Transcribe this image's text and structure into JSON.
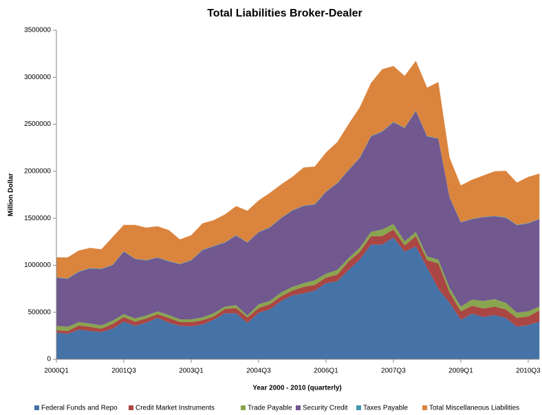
{
  "chart_data": {
    "type": "stacked_area",
    "title": "Total Liabilities Broker-Dealer",
    "x_label": "Year 2000 - 2010 (quarterly)",
    "y_label": "Million Dollar",
    "categories": [
      "2000Q1",
      null,
      null,
      null,
      null,
      null,
      "2001Q3",
      null,
      null,
      null,
      null,
      null,
      "2003Q1",
      null,
      null,
      null,
      null,
      null,
      "2004Q3",
      null,
      null,
      null,
      null,
      null,
      "2006Q1",
      null,
      null,
      null,
      null,
      null,
      "2007Q3",
      null,
      null,
      null,
      null,
      null,
      "2009Q1",
      null,
      null,
      null,
      null,
      null,
      "2010Q3",
      null
    ],
    "ylim": [
      0,
      3500000
    ],
    "yticks": [
      0,
      500000,
      1000000,
      1500000,
      2000000,
      2500000,
      3000000,
      3500000
    ],
    "grid": false,
    "legend": "bottom",
    "series": [
      {
        "name": "Federal Funds and Repo",
        "color": "#4572a7",
        "values": [
          285000,
          270000,
          315000,
          300000,
          290000,
          325000,
          400000,
          355000,
          390000,
          440000,
          390000,
          355000,
          350000,
          370000,
          420000,
          490000,
          490000,
          385000,
          495000,
          530000,
          620000,
          680000,
          700000,
          730000,
          810000,
          830000,
          950000,
          1060000,
          1220000,
          1220000,
          1295000,
          1145000,
          1200000,
          975000,
          750000,
          600000,
          420000,
          485000,
          450000,
          470000,
          440000,
          345000,
          365000,
          400000
        ]
      },
      {
        "name": "Credit Market Instruments",
        "color": "#aa4643",
        "values": [
          25000,
          30000,
          45000,
          45000,
          35000,
          50000,
          50000,
          45000,
          45000,
          40000,
          50000,
          40000,
          45000,
          45000,
          35000,
          45000,
          55000,
          60000,
          50000,
          55000,
          50000,
          50000,
          70000,
          60000,
          60000,
          70000,
          90000,
          80000,
          90000,
          90000,
          85000,
          65000,
          110000,
          80000,
          270000,
          110000,
          90000,
          85000,
          90000,
          90000,
          90000,
          95000,
          90000,
          120000
        ]
      },
      {
        "name": "Trade Payable",
        "color": "#89a54e",
        "values": [
          45000,
          45000,
          35000,
          35000,
          35000,
          35000,
          30000,
          35000,
          30000,
          30000,
          30000,
          30000,
          30000,
          30000,
          35000,
          25000,
          30000,
          20000,
          40000,
          35000,
          40000,
          40000,
          40000,
          50000,
          40000,
          50000,
          35000,
          45000,
          45000,
          70000,
          60000,
          45000,
          45000,
          40000,
          40000,
          50000,
          50000,
          65000,
          80000,
          80000,
          70000,
          55000,
          55000,
          40000
        ]
      },
      {
        "name": "Security Credit",
        "color": "#71588f",
        "values": [
          512000,
          510000,
          535000,
          585000,
          600000,
          590000,
          665000,
          630000,
          585000,
          570000,
          570000,
          585000,
          625000,
          715000,
          710000,
          680000,
          740000,
          775000,
          765000,
          780000,
          790000,
          810000,
          820000,
          805000,
          870000,
          920000,
          935000,
          955000,
          1015000,
          1040000,
          1080000,
          1205000,
          1285000,
          1275000,
          1285000,
          960000,
          895000,
          855000,
          890000,
          880000,
          905000,
          930000,
          935000,
          930000
        ]
      },
      {
        "name": "Taxes Payable",
        "color": "#4198af",
        "values": [
          5000,
          5000,
          5000,
          5000,
          5000,
          5000,
          5000,
          5000,
          5000,
          5000,
          5000,
          5000,
          5000,
          5000,
          5000,
          5000,
          5000,
          5000,
          5000,
          5000,
          5000,
          5000,
          5000,
          5000,
          5000,
          5000,
          5000,
          5000,
          5000,
          5000,
          5000,
          5000,
          5000,
          5000,
          5000,
          5000,
          5000,
          5000,
          5000,
          5000,
          5000,
          5000,
          5000,
          5000
        ]
      },
      {
        "name": "Total Miscellaneous Liabilities",
        "color": "#db843d",
        "values": [
          212000,
          224000,
          222000,
          215000,
          205000,
          295000,
          280000,
          360000,
          345000,
          330000,
          330000,
          260000,
          265000,
          280000,
          275000,
          295000,
          310000,
          335000,
          335000,
          365000,
          355000,
          355000,
          405000,
          400000,
          415000,
          435000,
          485000,
          535000,
          565000,
          660000,
          595000,
          550000,
          530000,
          515000,
          600000,
          420000,
          390000,
          415000,
          440000,
          475000,
          495000,
          450000,
          490000,
          480000
        ]
      }
    ]
  }
}
